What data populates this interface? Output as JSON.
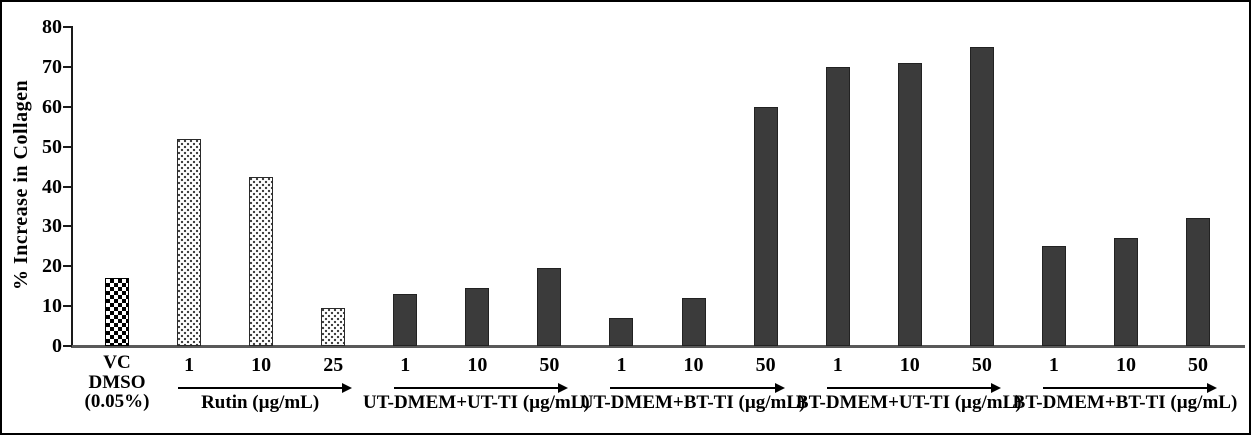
{
  "chart_data": {
    "type": "bar",
    "title": "",
    "xlabel": "",
    "ylabel": "% Increase in Collagen",
    "ylim": [
      0,
      80
    ],
    "yticks": [
      0,
      10,
      20,
      30,
      40,
      50,
      60,
      70,
      80
    ],
    "grid": false,
    "legend_position": "none",
    "bar_styles": {
      "checker": "black-and-white checkerboard fill",
      "dots": "white fill with fine dot pattern",
      "solid": "dark gray solid fill"
    },
    "colors": {
      "solid_bar": "#3b3b3b",
      "baseline": "#595959",
      "axis": "#1a1a1a",
      "text": "#000000",
      "background": "#ffffff"
    },
    "groups": [
      {
        "label": "",
        "label_lines": [
          "VC",
          "DMSO",
          "(0.05%)"
        ],
        "style": "checker",
        "arrow": false,
        "bars": [
          {
            "x": "",
            "value": 17
          }
        ]
      },
      {
        "label": "Rutin (µg/mL)",
        "style": "dots",
        "arrow": true,
        "bars": [
          {
            "x": "1",
            "value": 52
          },
          {
            "x": "10",
            "value": 42.5
          },
          {
            "x": "25",
            "value": 9.5
          }
        ]
      },
      {
        "label": "UT-DMEM+UT-TI (µg/mL)",
        "style": "solid",
        "arrow": true,
        "bars": [
          {
            "x": "1",
            "value": 13
          },
          {
            "x": "10",
            "value": 14.5
          },
          {
            "x": "50",
            "value": 19.5
          }
        ]
      },
      {
        "label": "UT-DMEM+BT-TI (µg/mL)",
        "style": "solid",
        "arrow": true,
        "bars": [
          {
            "x": "1",
            "value": 7
          },
          {
            "x": "10",
            "value": 12
          },
          {
            "x": "50",
            "value": 60
          }
        ]
      },
      {
        "label": "BT-DMEM+UT-TI (µg/mL)",
        "style": "solid",
        "arrow": true,
        "bars": [
          {
            "x": "1",
            "value": 70
          },
          {
            "x": "10",
            "value": 71
          },
          {
            "x": "50",
            "value": 75
          }
        ]
      },
      {
        "label": "BT-DMEM+BT-TI (µg/mL)",
        "style": "solid",
        "arrow": true,
        "bars": [
          {
            "x": "1",
            "value": 25
          },
          {
            "x": "10",
            "value": 27
          },
          {
            "x": "50",
            "value": 32
          }
        ]
      }
    ]
  }
}
